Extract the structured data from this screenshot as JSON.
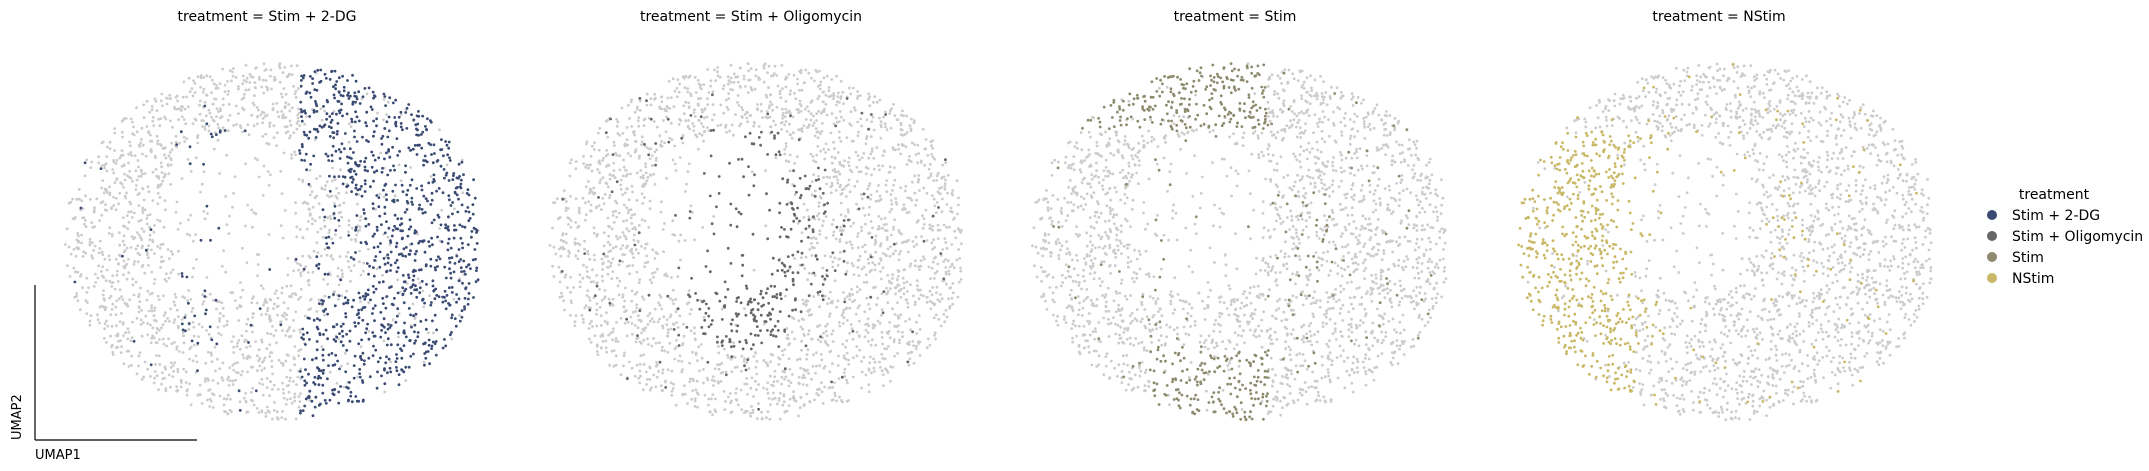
{
  "chart_data": {
    "type": "scatter",
    "embedding": "UMAP",
    "xlabel": "UMAP1",
    "ylabel": "UMAP2",
    "background_color": "#cccccc",
    "panels": [
      {
        "title": "treatment = Stim + 2-DG",
        "highlight": "Stim + 2-DG",
        "color": "#3a4a72",
        "region": "right crescent"
      },
      {
        "title": "treatment = Stim + Oligomycin",
        "highlight": "Stim + Oligomycin",
        "color": "#666666",
        "region": "center"
      },
      {
        "title": "treatment = Stim",
        "highlight": "Stim",
        "color": "#8d8a6e",
        "region": "top and bottom arcs"
      },
      {
        "title": "treatment = NStim",
        "highlight": "NStim",
        "color": "#c9b865",
        "region": "left band"
      }
    ],
    "legend": {
      "title": "treatment",
      "placement": "right",
      "entries": [
        {
          "label": "Stim + 2-DG",
          "color": "#3a4a72"
        },
        {
          "label": "Stim + Oligomycin",
          "color": "#666666"
        },
        {
          "label": "Stim",
          "color": "#8d8a6e"
        },
        {
          "label": "NStim",
          "color": "#c9b865"
        }
      ]
    }
  }
}
